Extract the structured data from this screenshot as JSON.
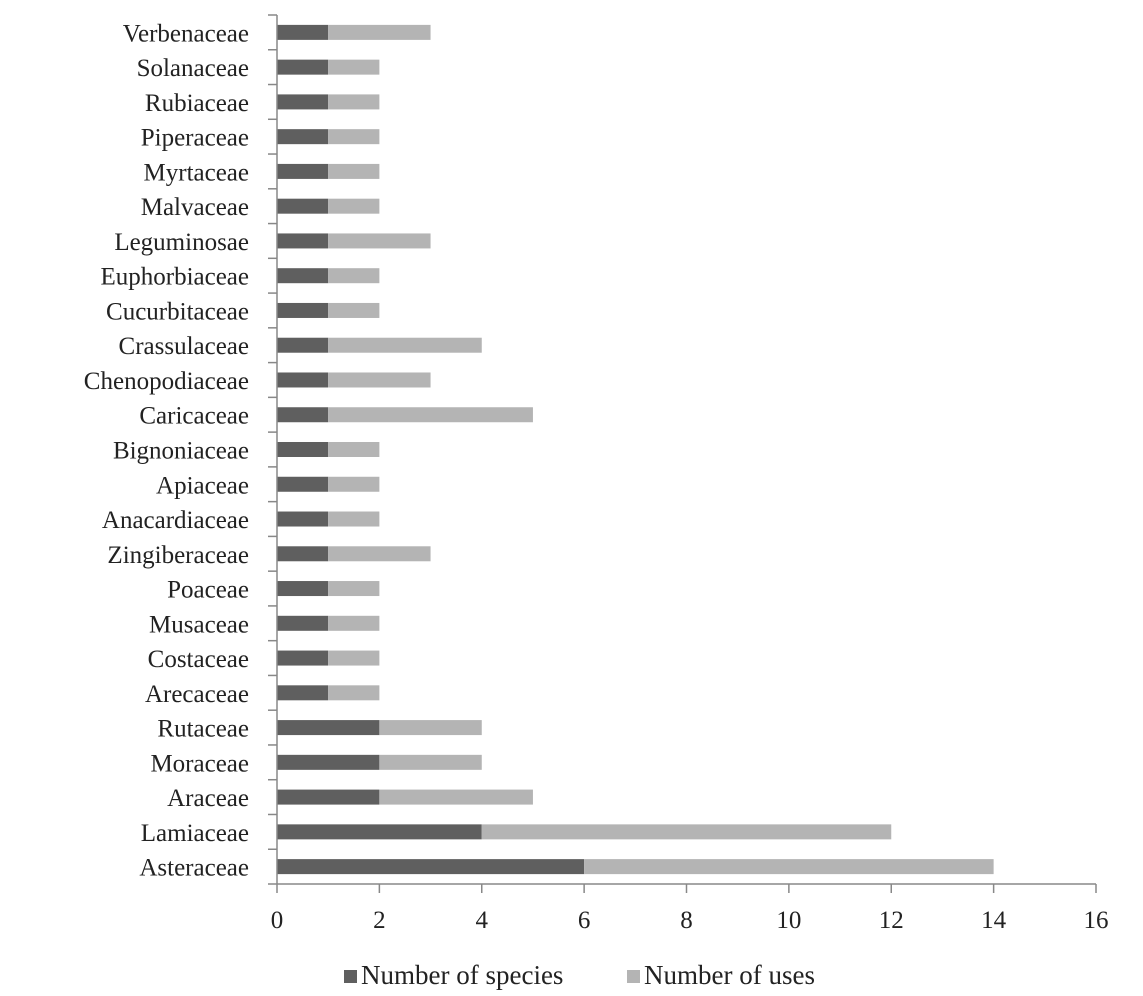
{
  "chart_data": {
    "type": "bar",
    "orientation": "horizontal",
    "stacked": true,
    "title": "",
    "xlabel": "",
    "ylabel": "",
    "xlim": [
      0,
      16
    ],
    "xticks": [
      0,
      2,
      4,
      6,
      8,
      10,
      12,
      14,
      16
    ],
    "grid": false,
    "legend_position": "bottom",
    "categories": [
      "Asteraceae",
      "Lamiaceae",
      "Araceae",
      "Moraceae",
      "Rutaceae",
      "Arecaceae",
      "Costaceae",
      "Musaceae",
      "Poaceae",
      "Zingiberaceae",
      "Anacardiaceae",
      "Apiaceae",
      "Bignoniaceae",
      "Caricaceae",
      "Chenopodiaceae",
      "Crassulaceae",
      "Cucurbitaceae",
      "Euphorbiaceae",
      "Leguminosae",
      "Malvaceae",
      "Myrtaceae",
      "Piperaceae",
      "Rubiaceae",
      "Solanaceae",
      "Verbenaceae"
    ],
    "series": [
      {
        "name": "Number of species",
        "color": "#5f5f5f",
        "values": [
          6,
          4,
          2,
          2,
          2,
          1,
          1,
          1,
          1,
          1,
          1,
          1,
          1,
          1,
          1,
          1,
          1,
          1,
          1,
          1,
          1,
          1,
          1,
          1,
          1
        ]
      },
      {
        "name": "Number of uses",
        "color": "#b4b4b4",
        "values": [
          8,
          8,
          3,
          2,
          2,
          1,
          1,
          1,
          1,
          2,
          1,
          1,
          1,
          4,
          2,
          3,
          1,
          1,
          2,
          1,
          1,
          1,
          1,
          1,
          2
        ]
      }
    ]
  },
  "colors": {
    "axis": "#888888",
    "text": "#222222"
  }
}
